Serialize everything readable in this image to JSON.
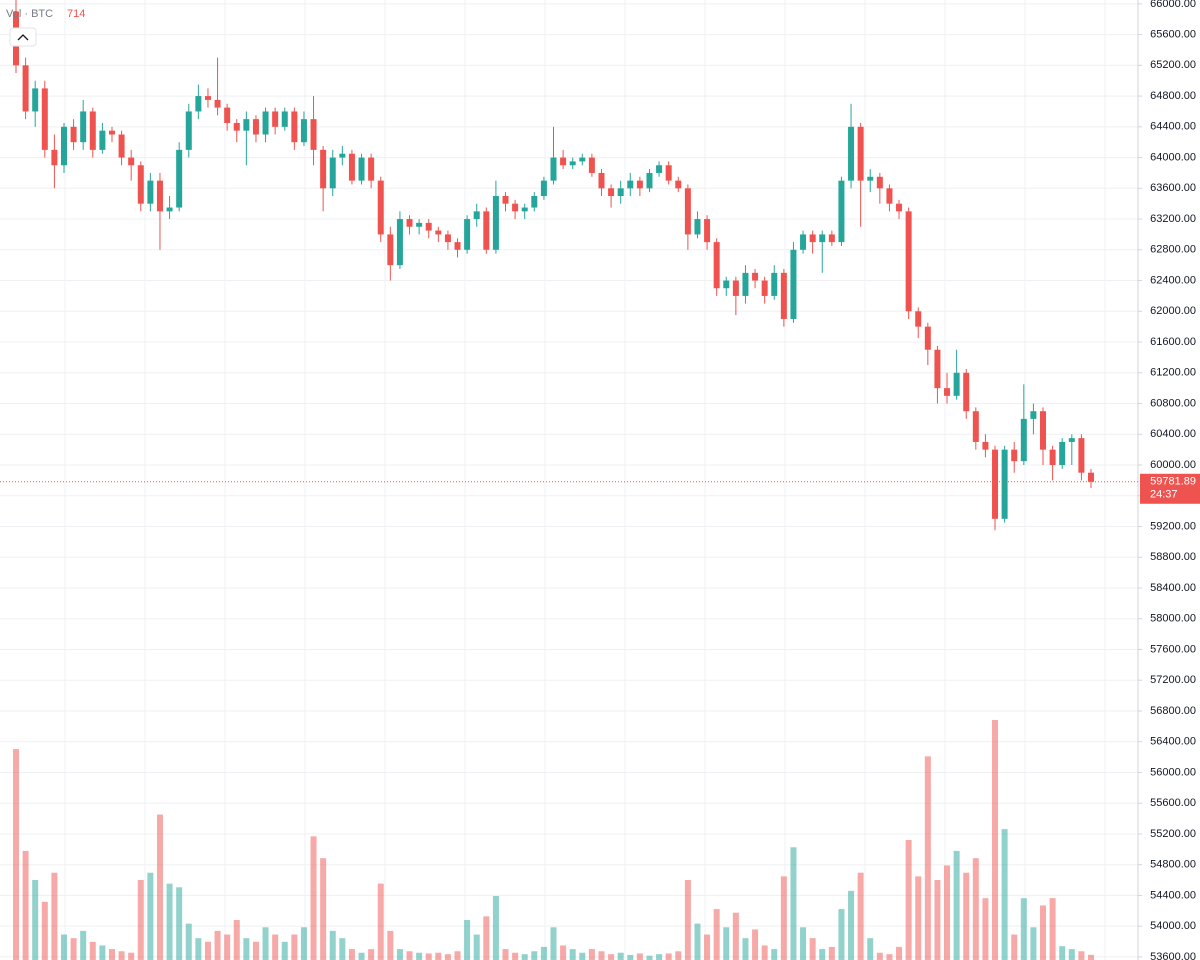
{
  "chart_data": {
    "type": "candlestick",
    "legend_label": "Vol · BTC",
    "countdown": "24:37",
    "up_color": "#26a69a",
    "down_color": "#ef5350",
    "grid": true,
    "ylim": [
      53560,
      66050
    ],
    "yticks": [
      {
        "value": 53600,
        "label": "53600.00"
      },
      {
        "value": 54000,
        "label": "54000.00"
      },
      {
        "value": 54400,
        "label": "54400.00"
      },
      {
        "value": 54800,
        "label": "54800.00"
      },
      {
        "value": 55200,
        "label": "55200.00"
      },
      {
        "value": 55600,
        "label": "55600.00"
      },
      {
        "value": 56000,
        "label": "56000.00"
      },
      {
        "value": 56400,
        "label": "56400.00"
      },
      {
        "value": 56800,
        "label": "56800.00"
      },
      {
        "value": 57200,
        "label": "57200.00"
      },
      {
        "value": 57600,
        "label": "57600.00"
      },
      {
        "value": 58000,
        "label": "58000.00"
      },
      {
        "value": 58400,
        "label": "58400.00"
      },
      {
        "value": 58800,
        "label": "58800.00"
      },
      {
        "value": 59200,
        "label": "59200.00"
      },
      {
        "value": 59600,
        "label": "59600.00"
      },
      {
        "value": 60000,
        "label": "60000.00"
      },
      {
        "value": 60400,
        "label": "60400.00"
      },
      {
        "value": 60800,
        "label": "60800.00"
      },
      {
        "value": 61200,
        "label": "61200.00"
      },
      {
        "value": 61600,
        "label": "61600.00"
      },
      {
        "value": 62000,
        "label": "62000.00"
      },
      {
        "value": 62400,
        "label": "62400.00"
      },
      {
        "value": 62800,
        "label": "62800.00"
      },
      {
        "value": 63200,
        "label": "63200.00"
      },
      {
        "value": 63600,
        "label": "63600.00"
      },
      {
        "value": 64000,
        "label": "64000.00"
      },
      {
        "value": 64400,
        "label": "64400.00"
      },
      {
        "value": 64800,
        "label": "64800.00"
      },
      {
        "value": 65200,
        "label": "65200.00"
      },
      {
        "value": 65600,
        "label": "65600.00"
      },
      {
        "value": 66000,
        "label": "66000.00"
      }
    ],
    "open": [
      65900,
      65200,
      64600,
      64900,
      64100,
      63900,
      64400,
      64200,
      64600,
      64100,
      64350,
      64300,
      64000,
      63900,
      63400,
      63700,
      63300,
      63350,
      64100,
      64600,
      64800,
      64750,
      64650,
      64450,
      64350,
      64500,
      64300,
      64600,
      64400,
      64600,
      64200,
      64500,
      64100,
      63600,
      64000,
      64050,
      63700,
      64000,
      63700,
      63000,
      62600,
      63200,
      63100,
      63150,
      63050,
      63000,
      62900,
      62800,
      63200,
      63300,
      62800,
      63500,
      63400,
      63300,
      63350,
      63500,
      63700,
      64000,
      63900,
      63950,
      64000,
      63800,
      63600,
      63500,
      63600,
      63700,
      63600,
      63800,
      63900,
      63700,
      63600,
      63000,
      63200,
      62900,
      62300,
      62400,
      62200,
      62500,
      62400,
      62200,
      62500,
      61900,
      62800,
      63000,
      62900,
      63000,
      62900,
      63700,
      64400,
      63700,
      63750,
      63600,
      63400,
      63300,
      62000,
      61800,
      61500,
      61000,
      60900,
      61200,
      60700,
      60300,
      60200,
      59300,
      60200,
      60050,
      60600,
      60700,
      60200,
      60000,
      60300,
      60350,
      59900
    ],
    "high": [
      66050,
      65300,
      65000,
      65000,
      64300,
      64450,
      64500,
      64750,
      64650,
      64450,
      64400,
      64350,
      64100,
      63950,
      63800,
      63800,
      63500,
      64200,
      64700,
      64950,
      64900,
      65300,
      64700,
      64500,
      64600,
      64550,
      64650,
      64650,
      64650,
      64650,
      64600,
      64800,
      64150,
      64100,
      64150,
      64100,
      64050,
      64050,
      63750,
      63100,
      63300,
      63250,
      63200,
      63200,
      63100,
      63050,
      62950,
      63250,
      63400,
      63350,
      63700,
      63550,
      63450,
      63400,
      63550,
      63750,
      64400,
      64100,
      64000,
      64050,
      64050,
      63850,
      63650,
      63700,
      63800,
      63750,
      63850,
      63950,
      63950,
      63750,
      63650,
      63300,
      63250,
      62950,
      62450,
      62450,
      62600,
      62550,
      62450,
      62600,
      62550,
      62900,
      63050,
      63050,
      63050,
      63050,
      63750,
      64700,
      64450,
      63850,
      63800,
      63650,
      63450,
      63350,
      62050,
      61850,
      61550,
      61200,
      61500,
      61250,
      60750,
      60400,
      60250,
      60250,
      60300,
      61050,
      60800,
      60750,
      60250,
      60350,
      60400,
      60400,
      59950
    ],
    "low": [
      65100,
      64500,
      64400,
      64000,
      63600,
      63800,
      64100,
      64100,
      64000,
      64050,
      64200,
      63900,
      63700,
      63300,
      63300,
      62800,
      63200,
      63300,
      64000,
      64500,
      64650,
      64550,
      64350,
      64200,
      63900,
      64200,
      64200,
      64300,
      64350,
      64100,
      64150,
      63900,
      63300,
      63500,
      63900,
      63650,
      63650,
      63600,
      62900,
      62400,
      62550,
      63000,
      63000,
      62950,
      62900,
      62800,
      62700,
      62750,
      63100,
      62750,
      62750,
      63300,
      63200,
      63200,
      63300,
      63450,
      63650,
      63850,
      63850,
      63900,
      63750,
      63500,
      63350,
      63400,
      63500,
      63500,
      63550,
      63750,
      63650,
      63550,
      62800,
      62950,
      62800,
      62200,
      62200,
      61950,
      62100,
      62300,
      62100,
      62150,
      61800,
      61850,
      62750,
      62750,
      62500,
      62850,
      62850,
      63600,
      63100,
      63550,
      63400,
      63300,
      63200,
      61900,
      61650,
      61300,
      60800,
      60800,
      60850,
      60600,
      60200,
      60100,
      59150,
      59250,
      59900,
      60000,
      60400,
      60000,
      59800,
      59950,
      60000,
      59800,
      59700
    ],
    "close": [
      65200,
      64600,
      64900,
      64100,
      63900,
      64400,
      64200,
      64600,
      64100,
      64350,
      64300,
      64000,
      63900,
      63400,
      63700,
      63300,
      63350,
      64100,
      64600,
      64800,
      64750,
      64650,
      64450,
      64350,
      64500,
      64300,
      64600,
      64400,
      64600,
      64200,
      64500,
      64100,
      63600,
      64000,
      64050,
      63700,
      64000,
      63700,
      63000,
      62600,
      63200,
      63100,
      63150,
      63050,
      63000,
      62900,
      62800,
      63200,
      63300,
      62800,
      63500,
      63400,
      63300,
      63350,
      63500,
      63700,
      64000,
      63900,
      63950,
      64000,
      63800,
      63600,
      63500,
      63600,
      63700,
      63600,
      63800,
      63900,
      63700,
      63600,
      63000,
      63200,
      62900,
      62300,
      62400,
      62200,
      62500,
      62400,
      62200,
      62500,
      61900,
      62800,
      63000,
      62900,
      63000,
      62900,
      63700,
      64400,
      63700,
      63750,
      63600,
      63400,
      63300,
      62000,
      61800,
      61500,
      61000,
      60900,
      61200,
      60700,
      60300,
      60200,
      59300,
      60200,
      60050,
      60600,
      60700,
      60200,
      60000,
      60300,
      60350,
      59900,
      59781.89
    ],
    "volume": [
      29000,
      15000,
      11000,
      8000,
      12000,
      3500,
      3000,
      4000,
      2500,
      2000,
      1500,
      1200,
      1000,
      11000,
      12000,
      20000,
      10500,
      10000,
      5000,
      3000,
      2500,
      4000,
      3500,
      5500,
      3000,
      2500,
      4500,
      3500,
      2500,
      3500,
      4500,
      17000,
      14000,
      4000,
      3000,
      1500,
      1000,
      1500,
      10500,
      4000,
      1500,
      1200,
      1000,
      900,
      1000,
      800,
      1200,
      5500,
      3500,
      6000,
      8800,
      1500,
      1000,
      800,
      1200,
      1800,
      4500,
      2000,
      1500,
      1000,
      1500,
      1200,
      800,
      1000,
      700,
      900,
      600,
      800,
      900,
      1200,
      11000,
      5000,
      3500,
      7000,
      4500,
      6500,
      3000,
      4200,
      2000,
      1500,
      11500,
      15500,
      4500,
      3000,
      1500,
      1800,
      7000,
      9500,
      12000,
      3000,
      1000,
      800,
      1800,
      16500,
      11500,
      28000,
      11000,
      13000,
      15000,
      12000,
      14000,
      8500,
      33000,
      18000,
      3500,
      8500,
      4500,
      7500,
      8500,
      1900,
      1500,
      1200,
      714
    ]
  }
}
